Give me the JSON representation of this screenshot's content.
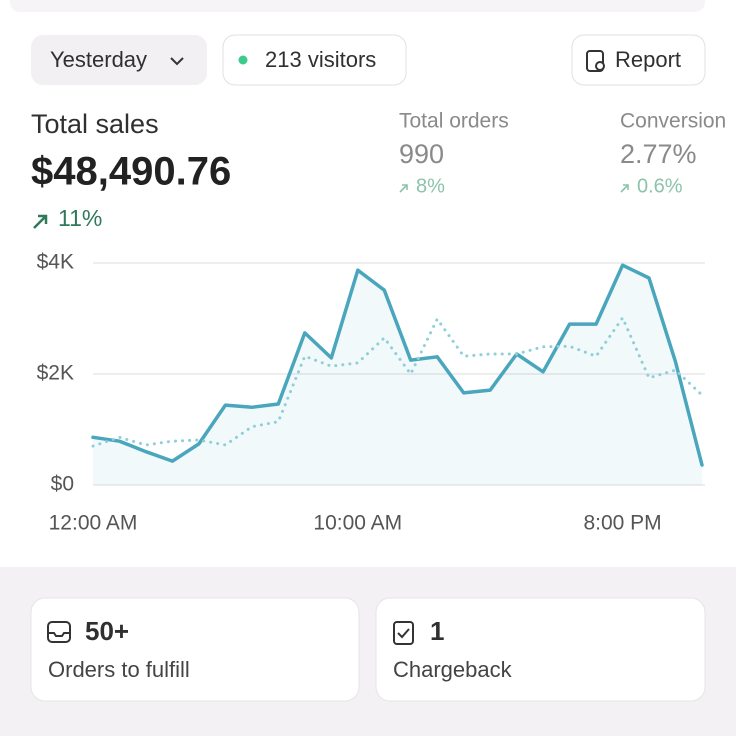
{
  "header": {
    "period": "Yesterday",
    "visitors": "213 visitors",
    "report": "Report"
  },
  "metrics": [
    {
      "label": "Total sales",
      "value": "$48,490.76",
      "change": "11%"
    },
    {
      "label": "Total orders",
      "value": "990",
      "change": "8%"
    },
    {
      "label": "Conversion",
      "value": "2.77%",
      "change": "0.6%"
    }
  ],
  "chart_data": {
    "type": "line",
    "x": [
      0,
      1,
      2,
      3,
      4,
      5,
      6,
      7,
      8,
      9,
      10,
      11,
      12,
      13,
      14,
      15,
      16,
      17,
      18,
      19,
      20,
      21,
      22,
      23
    ],
    "series": [
      {
        "color": "#4aa6bd",
        "style": "solid",
        "fill": true,
        "values": [
          860,
          790,
          600,
          430,
          740,
          1440,
          1400,
          1460,
          2740,
          2290,
          3870,
          3510,
          2250,
          2310,
          1660,
          1710,
          2360,
          2040,
          2900,
          2900,
          3960,
          3730,
          2220,
          360
        ]
      },
      {
        "color": "#8fcfd8",
        "style": "dotted",
        "fill": false,
        "values": [
          700,
          860,
          720,
          790,
          810,
          720,
          1050,
          1140,
          2320,
          2140,
          2200,
          2650,
          2000,
          2990,
          2320,
          2360,
          2360,
          2490,
          2500,
          2320,
          3010,
          1930,
          2070,
          1620
        ]
      }
    ],
    "xlim": [
      0,
      23
    ],
    "xticks": [
      {
        "value": 0,
        "label": "12:00 AM"
      },
      {
        "value": 10,
        "label": "10:00 AM"
      },
      {
        "value": 20,
        "label": "8:00 PM"
      }
    ],
    "ylim": [
      0,
      4000
    ],
    "yticks": [
      {
        "value": 0,
        "label": "$0"
      },
      {
        "value": 2000,
        "label": "$2K"
      },
      {
        "value": 4000,
        "label": "$4K"
      }
    ],
    "grid": true
  },
  "cards": [
    {
      "value": "50+",
      "label": "Orders to fulfill"
    },
    {
      "value": "1",
      "label": "Chargeback"
    }
  ]
}
